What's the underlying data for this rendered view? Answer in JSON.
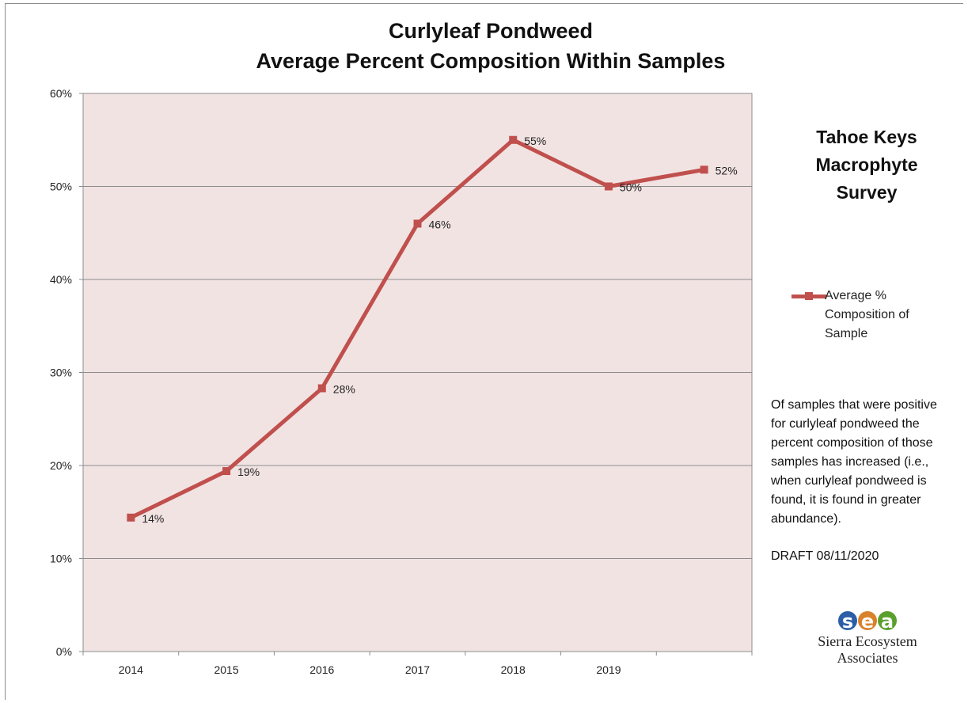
{
  "chart_data": {
    "type": "line",
    "title_lines": [
      "Curlyleaf Pondweed",
      "Average Percent Composition Within Samples"
    ],
    "categories": [
      "2014",
      "2015",
      "2016",
      "2017",
      "2018",
      "2019",
      ""
    ],
    "series": [
      {
        "name": "Average % Composition of Sample",
        "values": [
          14.4,
          19.4,
          28.3,
          46.0,
          55.0,
          50.0,
          51.8
        ],
        "data_labels": [
          "14%",
          "19%",
          "28%",
          "46%",
          "55%",
          "50%",
          "52%"
        ],
        "color": "#c0504d"
      }
    ],
    "ylim": [
      0,
      60
    ],
    "y_ticks": [
      0,
      10,
      20,
      30,
      40,
      50,
      60
    ],
    "y_tick_labels": [
      "0%",
      "10%",
      "20%",
      "30%",
      "40%",
      "50%",
      "60%"
    ],
    "grid": true,
    "plot_background": "#f2e3e3",
    "legend_position": "right"
  },
  "side_title_lines": [
    "Tahoe Keys",
    "Macrophyte",
    "Survey"
  ],
  "legend": {
    "label_lines": [
      "Average %",
      "Composition of",
      "Sample"
    ]
  },
  "note_lines": [
    "Of samples that were positive",
    "for curlyleaf pondweed the",
    "percent composition of those",
    "samples has increased (i.e.,",
    "when curlyleaf pondweed is",
    "found, it is found in greater",
    "abundance)."
  ],
  "draft_label": "DRAFT 08/11/2020",
  "logo": {
    "letters": [
      "s",
      "e",
      "a"
    ],
    "letter_colors": [
      "#2a5fa8",
      "#d9822b",
      "#5aa02c"
    ],
    "name_lines": [
      "Sierra Ecosystem",
      "Associates"
    ]
  }
}
